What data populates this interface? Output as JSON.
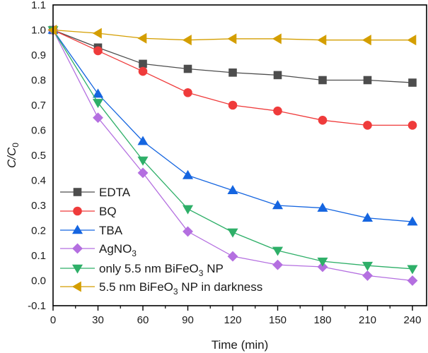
{
  "chart_data": {
    "type": "line",
    "title": "",
    "xlabel": "Time (min)",
    "ylabel": {
      "main": "C/C",
      "sub": "0"
    },
    "xlim": [
      0,
      240
    ],
    "ylim": [
      -0.1,
      1.1
    ],
    "x_ticks": [
      0,
      30,
      60,
      90,
      120,
      150,
      180,
      210,
      240
    ],
    "x_tick_labels": [
      "0",
      "30",
      "60",
      "90",
      "120",
      "150",
      "180",
      "210",
      "240"
    ],
    "y_ticks": [
      -0.1,
      0.0,
      0.1,
      0.2,
      0.3,
      0.4,
      0.5,
      0.6,
      0.7,
      0.8,
      0.9,
      1.0,
      1.1
    ],
    "y_tick_labels": [
      "-0.1",
      "0.0",
      "0.1",
      "0.2",
      "0.3",
      "0.4",
      "0.5",
      "0.6",
      "0.7",
      "0.8",
      "0.9",
      "1.0",
      "1.1"
    ],
    "grid": false,
    "legend_position": "bottom-left",
    "x": [
      0,
      30,
      60,
      90,
      120,
      150,
      180,
      210,
      240
    ],
    "series": [
      {
        "name": "EDTA",
        "label_main": "EDTA",
        "label_sub": "",
        "label_tail": "",
        "marker": "square",
        "color": "#4d4d4d",
        "values": [
          1.0,
          0.93,
          0.865,
          0.845,
          0.83,
          0.82,
          0.8,
          0.8,
          0.79
        ]
      },
      {
        "name": "BQ",
        "label_main": "BQ",
        "label_sub": "",
        "label_tail": "",
        "marker": "circle",
        "color": "#ef3b3b",
        "values": [
          1.0,
          0.917,
          0.835,
          0.75,
          0.7,
          0.677,
          0.64,
          0.62,
          0.62
        ]
      },
      {
        "name": "TBA",
        "label_main": "TBA",
        "label_sub": "",
        "label_tail": "",
        "marker": "triangle-up",
        "color": "#1565e0",
        "values": [
          1.0,
          0.745,
          0.556,
          0.42,
          0.36,
          0.3,
          0.29,
          0.25,
          0.235
        ]
      },
      {
        "name": "AgNO3",
        "label_main": "AgNO",
        "label_sub": "3",
        "label_tail": "",
        "marker": "diamond",
        "color": "#b46fe0",
        "values": [
          1.0,
          0.65,
          0.43,
          0.196,
          0.097,
          0.063,
          0.055,
          0.02,
          0.0
        ]
      },
      {
        "name": "only 5.5 nm BiFeO3 NP",
        "label_main": "only 5.5 nm BiFeO",
        "label_sub": "3",
        "label_tail": " NP",
        "marker": "triangle-down",
        "color": "#2eaf68",
        "values": [
          1.0,
          0.71,
          0.48,
          0.286,
          0.193,
          0.12,
          0.077,
          0.06,
          0.047
        ]
      },
      {
        "name": "5.5 nm BiFeO3 NP in darkness",
        "label_main": "5.5 nm BiFeO",
        "label_sub": "3",
        "label_tail": " NP in darkness",
        "marker": "triangle-left",
        "color": "#d49e00",
        "values": [
          1.0,
          0.987,
          0.967,
          0.96,
          0.965,
          0.965,
          0.96,
          0.96,
          0.96
        ]
      }
    ]
  }
}
